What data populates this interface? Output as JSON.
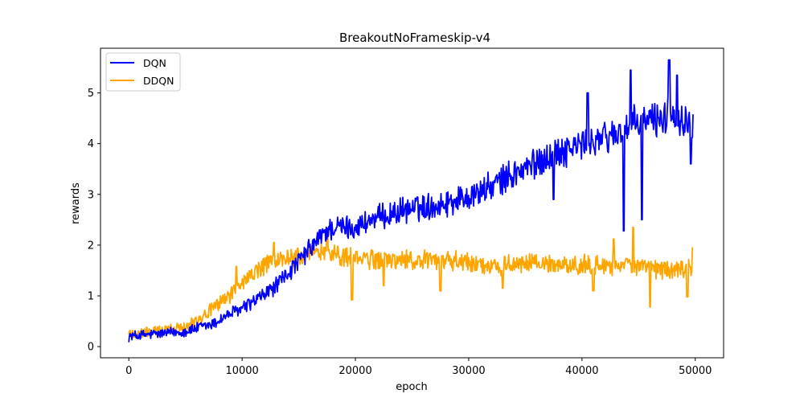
{
  "chart_data": {
    "type": "line",
    "title": "BreakoutNoFrameskip-v4",
    "xlabel": "epoch",
    "ylabel": "rewards",
    "xlim": [
      -2500,
      52500
    ],
    "ylim": [
      -0.22,
      5.88
    ],
    "xticks": [
      0,
      10000,
      20000,
      30000,
      40000,
      50000
    ],
    "xtick_labels": [
      "0",
      "10000",
      "20000",
      "30000",
      "40000",
      "50000"
    ],
    "yticks": [
      0,
      1,
      2,
      3,
      4,
      5
    ],
    "ytick_labels": [
      "0",
      "1",
      "2",
      "3",
      "4",
      "5"
    ],
    "grid": false,
    "legend_position": "top-left",
    "series": [
      {
        "name": "DQN",
        "color": "#0000ff",
        "x": [
          0,
          2500,
          5000,
          7500,
          8500,
          10000,
          11500,
          13000,
          14500,
          15500,
          16500,
          17500,
          18500,
          20000,
          21500,
          23000,
          24500,
          26000,
          27500,
          29000,
          30500,
          32000,
          33500,
          35000,
          36500,
          38000,
          39500,
          41000,
          42500,
          44000,
          45500,
          47000,
          48500,
          49800
        ],
        "y": [
          0.2,
          0.25,
          0.3,
          0.45,
          0.6,
          0.75,
          0.95,
          1.2,
          1.55,
          1.8,
          2.05,
          2.3,
          2.35,
          2.35,
          2.5,
          2.6,
          2.7,
          2.75,
          2.8,
          2.9,
          3.0,
          3.15,
          3.35,
          3.5,
          3.7,
          3.85,
          3.95,
          4.05,
          4.15,
          4.3,
          4.45,
          4.5,
          4.55,
          4.4
        ],
        "spikes_down": [
          [
            37500,
            2.9
          ],
          [
            43700,
            2.28
          ],
          [
            45300,
            2.5
          ],
          [
            49600,
            3.6
          ]
        ],
        "spikes_up": [
          [
            40500,
            5.0
          ],
          [
            44300,
            5.45
          ],
          [
            47700,
            5.65
          ],
          [
            48400,
            5.35
          ]
        ]
      },
      {
        "name": "DDQN",
        "color": "#ffa500",
        "x": [
          0,
          2500,
          5000,
          6500,
          8000,
          9500,
          11000,
          12500,
          14000,
          15500,
          17000,
          18500,
          20000,
          22000,
          24000,
          26000,
          28000,
          30000,
          32000,
          34000,
          36000,
          38000,
          40000,
          42000,
          44000,
          46000,
          48000,
          49800
        ],
        "y": [
          0.25,
          0.3,
          0.4,
          0.6,
          0.85,
          1.15,
          1.45,
          1.65,
          1.75,
          1.8,
          1.85,
          1.8,
          1.75,
          1.7,
          1.7,
          1.7,
          1.7,
          1.65,
          1.6,
          1.6,
          1.65,
          1.6,
          1.6,
          1.6,
          1.6,
          1.55,
          1.5,
          1.6
        ],
        "spikes_down": [
          [
            19700,
            0.92
          ],
          [
            22500,
            1.2
          ],
          [
            27500,
            1.1
          ],
          [
            33000,
            1.15
          ],
          [
            41000,
            1.1
          ],
          [
            46000,
            0.78
          ],
          [
            49300,
            0.98
          ]
        ],
        "spikes_up": [
          [
            9500,
            1.58
          ],
          [
            12800,
            2.05
          ],
          [
            17500,
            2.33
          ],
          [
            42800,
            2.12
          ],
          [
            44500,
            2.35
          ],
          [
            49800,
            1.95
          ]
        ]
      }
    ]
  }
}
